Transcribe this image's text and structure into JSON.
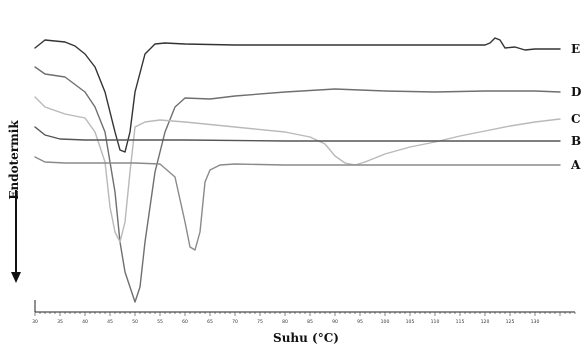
{
  "chart_data": {
    "type": "line",
    "title": "",
    "xlabel": "Suhu (°C)",
    "ylabel": "Endotermik",
    "xlim": [
      30,
      138
    ],
    "x_ticks": [
      30,
      35,
      40,
      45,
      50,
      55,
      60,
      65,
      70,
      75,
      80,
      85,
      90,
      95,
      100,
      105,
      110,
      115,
      120,
      125,
      130
    ],
    "y_ticks": [],
    "grid": false,
    "legend": "none",
    "series": [
      {
        "name": "E",
        "color": "#333333",
        "x": [
          30,
          32,
          36,
          38,
          40,
          42,
          44,
          46,
          47,
          48,
          49,
          50,
          52,
          54,
          56,
          60,
          70,
          80,
          90,
          100,
          110,
          115,
          120,
          121,
          122,
          123,
          124,
          126,
          128,
          130,
          135
        ],
        "y": [
          -16,
          -8,
          -10,
          -14,
          -22,
          -35,
          -60,
          -100,
          -118,
          -120,
          -100,
          -60,
          -22,
          -12,
          -11,
          -12,
          -13,
          -13,
          -13,
          -13,
          -13,
          -13,
          -13,
          -11,
          -6,
          -8,
          -16,
          -15,
          -18,
          -17,
          -17
        ]
      },
      {
        "name": "D",
        "color": "#6f6f6f",
        "x": [
          30,
          32,
          36,
          40,
          42,
          44,
          45,
          46,
          47,
          48,
          49,
          50,
          51,
          52,
          54,
          56,
          58,
          60,
          65,
          70,
          80,
          90,
          100,
          110,
          120,
          130,
          135
        ],
        "y": [
          -35,
          -42,
          -45,
          -60,
          -75,
          -100,
          -130,
          -160,
          -210,
          -240,
          -255,
          -270,
          -255,
          -210,
          -140,
          -100,
          -75,
          -66,
          -67,
          -64,
          -60,
          -57,
          -59,
          -60,
          -59,
          -59,
          -60
        ]
      },
      {
        "name": "C",
        "color": "#b9b9b9",
        "x": [
          30,
          32,
          36,
          40,
          42,
          44,
          45,
          46,
          47,
          48,
          49,
          50,
          52,
          55,
          60,
          70,
          80,
          85,
          88,
          90,
          92,
          94,
          96,
          98,
          100,
          105,
          110,
          115,
          120,
          125,
          130,
          135
        ],
        "y": [
          -65,
          -75,
          -82,
          -86,
          -100,
          -130,
          -175,
          -200,
          -210,
          -190,
          -140,
          -95,
          -90,
          -88,
          -90,
          -95,
          -100,
          -105,
          -112,
          -124,
          -131,
          -133,
          -130,
          -126,
          -122,
          -115,
          -110,
          -104,
          -99,
          -94,
          -90,
          -87
        ]
      },
      {
        "name": "B",
        "color": "#555555",
        "x": [
          30,
          32,
          35,
          40,
          45,
          60,
          80,
          100,
          120,
          135
        ],
        "y": [
          -95,
          -103,
          -107,
          -108,
          -108,
          -108,
          -109,
          -109,
          -109,
          -109
        ]
      },
      {
        "name": "A",
        "color": "#8a8a8a",
        "x": [
          30,
          32,
          36,
          40,
          50,
          55,
          58,
          60,
          61,
          62,
          63,
          64,
          65,
          67,
          70,
          80,
          100,
          120,
          135
        ],
        "y": [
          -125,
          -130,
          -131,
          -131,
          -131,
          -132,
          -145,
          -190,
          -215,
          -218,
          -200,
          -150,
          -138,
          -133,
          -132,
          -133,
          -133,
          -133,
          -133
        ]
      }
    ]
  }
}
